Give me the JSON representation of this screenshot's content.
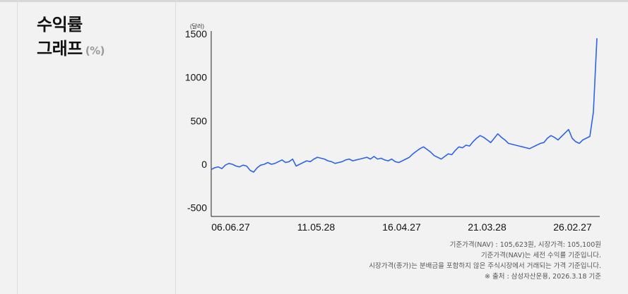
{
  "heading": {
    "line1": "수익률",
    "line2": "그래프",
    "unit": "(%)"
  },
  "chart_data": {
    "type": "line",
    "unit_label": "(달러)",
    "ylim": [
      -600,
      1500
    ],
    "y_ticks": [
      1500,
      1000,
      500,
      0,
      -500
    ],
    "x_tick_labels": [
      "06.06.27",
      "11.05.28",
      "16.04.27",
      "21.03.28",
      "26.02.27"
    ],
    "x_tick_positions": [
      0.05,
      0.27,
      0.49,
      0.71,
      0.93
    ],
    "grid": false,
    "line_color": "#2f63e8",
    "series": [
      {
        "values": [
          -60,
          -40,
          -30,
          -50,
          -10,
          10,
          0,
          -20,
          -30,
          -10,
          -20,
          -70,
          -90,
          -40,
          -10,
          0,
          20,
          0,
          10,
          30,
          50,
          20,
          30,
          60,
          -20,
          0,
          20,
          40,
          30,
          60,
          80,
          70,
          60,
          40,
          30,
          10,
          20,
          30,
          50,
          60,
          40,
          50,
          60,
          70,
          80,
          60,
          90,
          60,
          70,
          50,
          40,
          60,
          30,
          20,
          40,
          60,
          80,
          120,
          150,
          180,
          200,
          170,
          140,
          100,
          80,
          60,
          90,
          120,
          110,
          160,
          200,
          190,
          220,
          210,
          260,
          300,
          330,
          310,
          280,
          250,
          300,
          350,
          310,
          280,
          240,
          230,
          220,
          210,
          200,
          190,
          180,
          200,
          220,
          240,
          250,
          300,
          330,
          310,
          280,
          320,
          360,
          400,
          300,
          260,
          240,
          280,
          300,
          320,
          600,
          1450
        ]
      }
    ]
  },
  "notes": [
    "기준가격(NAV) : 105,623원, 시장가격: 105,100원",
    "기준가격(NAV)는 세전 수익률 기준입니다.",
    "시장가격(종가)는 분배금을 포함하지 않은 주식시장에서 거래되는 가격 기준입니다.",
    "※ 출처 : 삼성자산운용, 2026.3.18 기준"
  ]
}
